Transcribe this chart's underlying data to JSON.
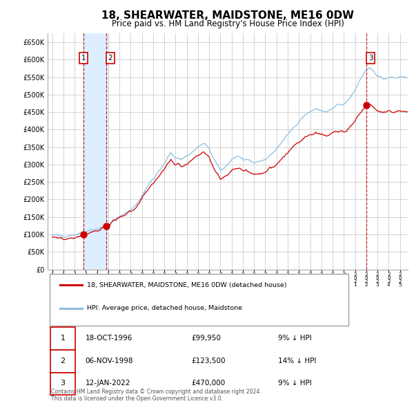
{
  "title": "18, SHEARWATER, MAIDSTONE, ME16 0DW",
  "subtitle": "Price paid vs. HM Land Registry's House Price Index (HPI)",
  "legend_entry1": "18, SHEARWATER, MAIDSTONE, ME16 0DW (detached house)",
  "legend_entry2": "HPI: Average price, detached house, Maidstone",
  "table_rows": [
    {
      "num": "1",
      "date": "18-OCT-1996",
      "price": "£99,950",
      "hpi": "9% ↓ HPI"
    },
    {
      "num": "2",
      "date": "06-NOV-1998",
      "price": "£123,500",
      "hpi": "14% ↓ HPI"
    },
    {
      "num": "3",
      "date": "12-JAN-2022",
      "price": "£470,000",
      "hpi": "9% ↓ HPI"
    }
  ],
  "footer": "Contains HM Land Registry data © Crown copyright and database right 2024.\nThis data is licensed under the Open Government Licence v3.0.",
  "sale1_year": 1996.79,
  "sale1_price": 99950,
  "sale2_year": 1998.84,
  "sale2_price": 123500,
  "sale3_year": 2022.04,
  "sale3_price": 470000,
  "hpi_color": "#8bbde0",
  "price_color": "#cc0000",
  "marker_color": "#cc0000",
  "highlight_color": "#ddeeff",
  "background_color": "#ffffff",
  "grid_color": "#cccccc",
  "ylim": [
    0,
    675000
  ],
  "xlim_start": 1993.6,
  "xlim_end": 2025.7
}
